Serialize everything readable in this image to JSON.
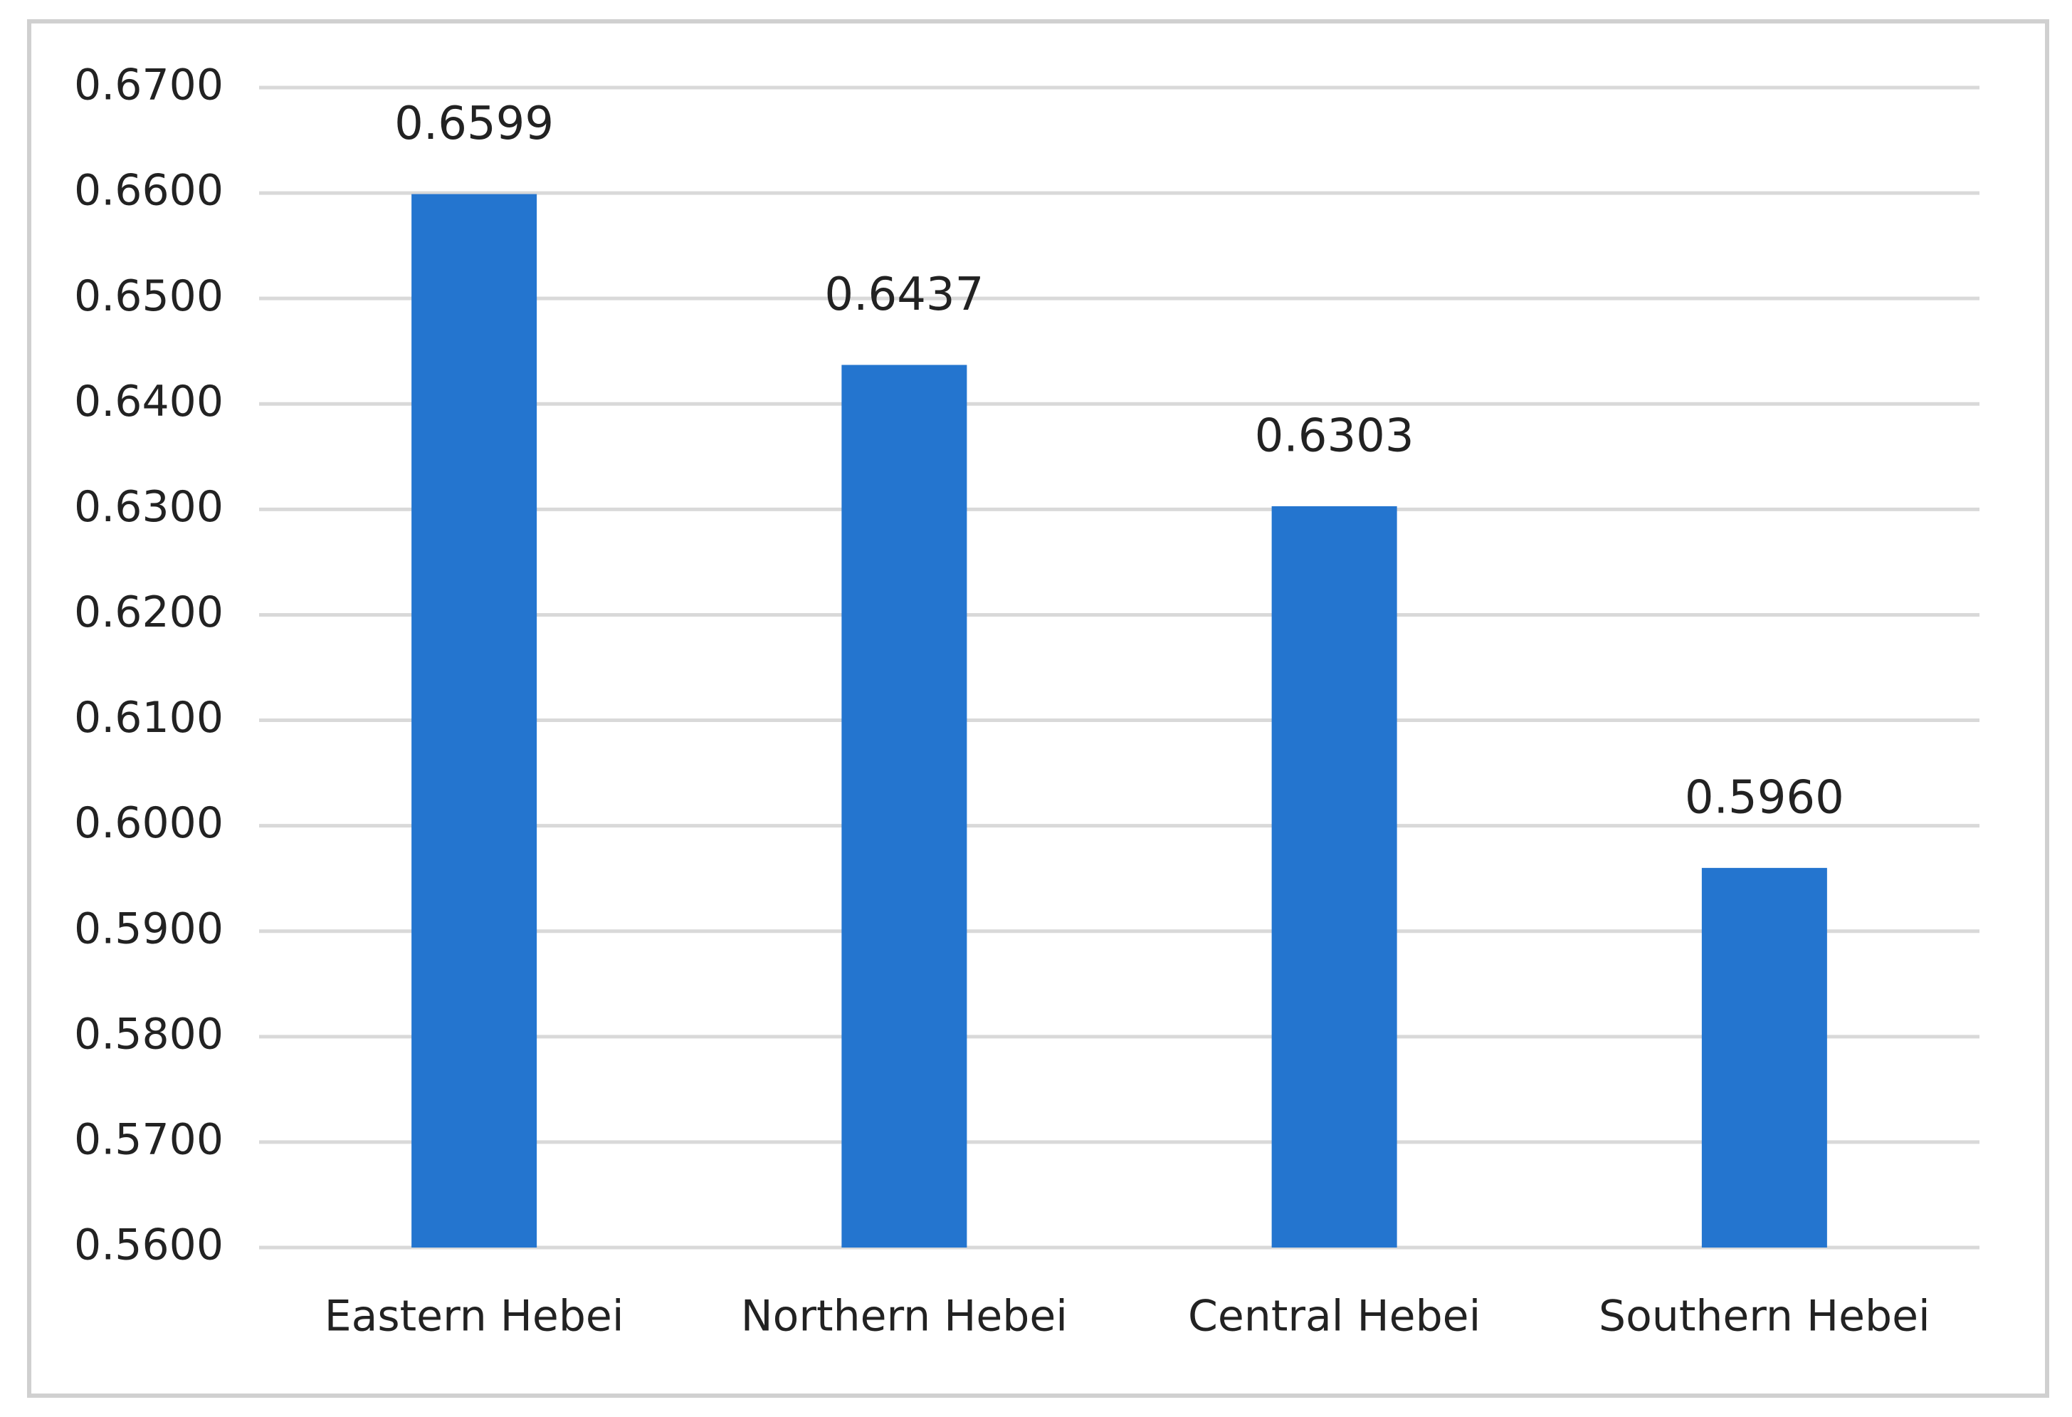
{
  "chart_data": {
    "type": "bar",
    "categories": [
      "Eastern Hebei",
      "Northern Hebei",
      "Central Hebei",
      "Southern Hebei"
    ],
    "values": [
      0.6599,
      0.6437,
      0.6303,
      0.596
    ],
    "value_labels": [
      "0.6599",
      "0.6437",
      "0.6303",
      "0.5960"
    ],
    "color": "#2475cf",
    "ylim": [
      0.56,
      0.67
    ],
    "yticks": [
      {
        "value": 0.56,
        "label": "0.5600"
      },
      {
        "value": 0.57,
        "label": "0.5700"
      },
      {
        "value": 0.58,
        "label": "0.5800"
      },
      {
        "value": 0.59,
        "label": "0.5900"
      },
      {
        "value": 0.6,
        "label": "0.6000"
      },
      {
        "value": 0.61,
        "label": "0.6100"
      },
      {
        "value": 0.62,
        "label": "0.6200"
      },
      {
        "value": 0.63,
        "label": "0.6300"
      },
      {
        "value": 0.64,
        "label": "0.6400"
      },
      {
        "value": 0.65,
        "label": "0.6500"
      },
      {
        "value": 0.66,
        "label": "0.6600"
      },
      {
        "value": 0.67,
        "label": "0.6700"
      }
    ],
    "grid": true
  }
}
